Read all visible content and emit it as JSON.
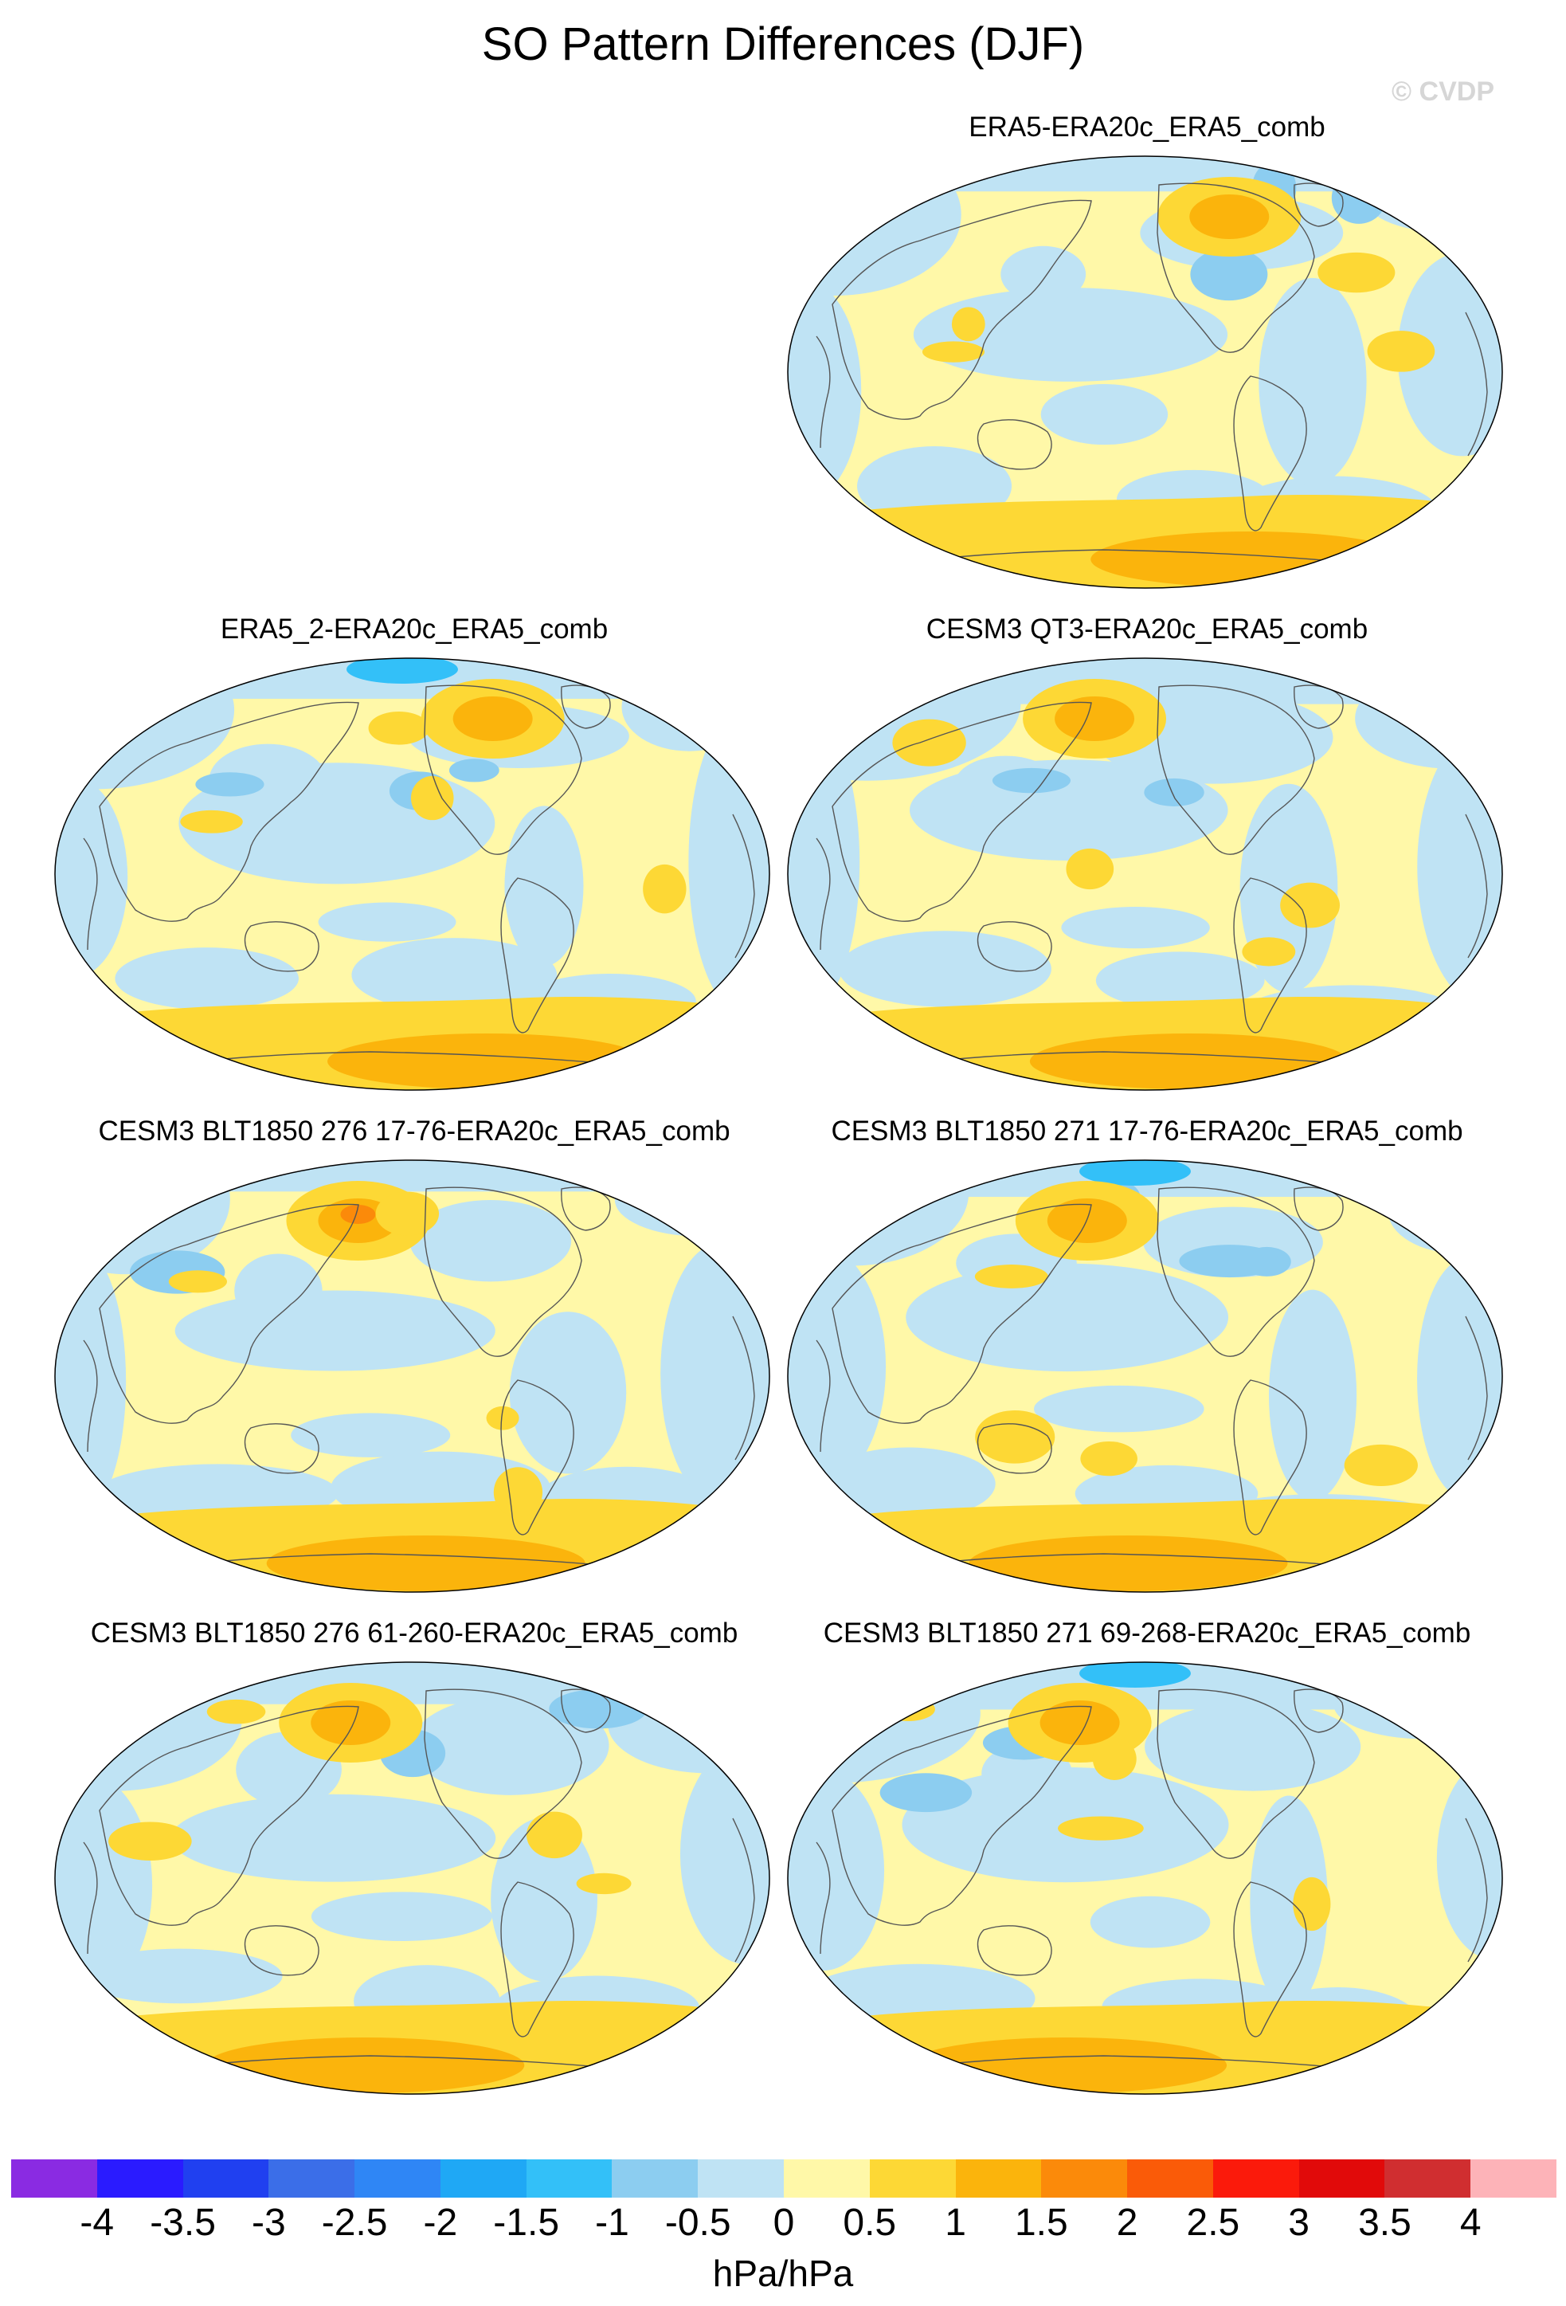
{
  "title": "SO Pattern Differences (DJF)",
  "watermark": "© CVDP",
  "panels": [
    {
      "title": "ERA5-ERA20c_ERA5_comb",
      "variant": 0
    },
    {
      "title": "ERA5_2-ERA20c_ERA5_comb",
      "variant": 1
    },
    {
      "title": "CESM3 QT3-ERA20c_ERA5_comb",
      "variant": 2
    },
    {
      "title": "CESM3 BLT1850 276 17-76-ERA20c_ERA5_comb",
      "variant": 3
    },
    {
      "title": "CESM3 BLT1850 271 17-76-ERA20c_ERA5_comb",
      "variant": 4
    },
    {
      "title": "CESM3 BLT1850 276 61-260-ERA20c_ERA5_comb",
      "variant": 5
    },
    {
      "title": "CESM3 BLT1850 271 69-268-ERA20c_ERA5_comb",
      "variant": 6
    }
  ],
  "colorbar": {
    "colors": [
      "#8a2be2",
      "#2a1bff",
      "#2040f0",
      "#3b6ee8",
      "#2f86f5",
      "#1fa8f5",
      "#33c0f8",
      "#8ccdf0",
      "#bfe3f4",
      "#fff8a8",
      "#fdd835",
      "#fbb40c",
      "#fb8a0a",
      "#fa5b08",
      "#fb1a0b",
      "#e10a0a",
      "#d02e30",
      "#fdb3b8"
    ],
    "labels": [
      "-4",
      "-3.5",
      "-3",
      "-2.5",
      "-2",
      "-1.5",
      "-1",
      "-0.5",
      "0",
      "0.5",
      "1",
      "1.5",
      "2",
      "2.5",
      "3",
      "3.5",
      "4"
    ],
    "units": "hPa/hPa"
  },
  "colors": {
    "light_blue": "#bfe3f4",
    "mid_blue": "#8ccdf0",
    "blue": "#33c0f8",
    "light_yellow": "#fff8a8",
    "yellow": "#fdd835",
    "orange": "#fbb40c",
    "dark_orange": "#fb8a0a",
    "coast": "#555555"
  }
}
